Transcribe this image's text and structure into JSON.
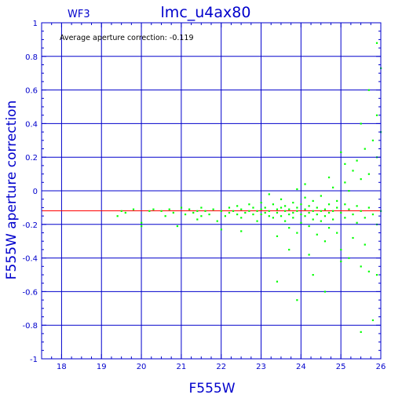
{
  "chart_data": {
    "type": "scatter",
    "title": "lmc_u4ax80",
    "subtitle": "WF3",
    "annotation": "Average aperture correction:  -0.119",
    "xlabel": "F555W",
    "ylabel": "F555W aperture correction",
    "xlim": [
      17.5,
      26
    ],
    "ylim": [
      -1,
      1
    ],
    "x_ticks": [
      "18",
      "19",
      "20",
      "21",
      "22",
      "23",
      "24",
      "25",
      "26"
    ],
    "y_ticks": [
      "1",
      "0.8",
      "0.6",
      "0.4",
      "0.2",
      "0",
      "-0.2",
      "-0.4",
      "-0.6",
      "-0.8",
      "-1"
    ],
    "grid": true,
    "reference_line": {
      "y": -0.119,
      "color": "#ff0000"
    },
    "colors": {
      "axis": "#0000cc",
      "grid": "#0000cc",
      "points": "#00ff00",
      "text": "#0000cc",
      "annotation": "#000000"
    },
    "series": [
      {
        "points": [
          [
            19.4,
            -0.15
          ],
          [
            19.5,
            -0.12
          ],
          [
            19.6,
            -0.13
          ],
          [
            19.8,
            -0.11
          ],
          [
            20.0,
            -0.19
          ],
          [
            20.0,
            -0.21
          ],
          [
            20.2,
            -0.12
          ],
          [
            20.3,
            -0.11
          ],
          [
            20.5,
            -0.12
          ],
          [
            20.7,
            -0.11
          ],
          [
            20.8,
            -0.13
          ],
          [
            20.9,
            -0.21
          ],
          [
            21.0,
            -0.1
          ],
          [
            21.1,
            -0.14
          ],
          [
            21.2,
            -0.11
          ],
          [
            21.3,
            -0.13
          ],
          [
            21.4,
            -0.12
          ],
          [
            21.5,
            -0.15
          ],
          [
            21.5,
            -0.1
          ],
          [
            21.6,
            -0.12
          ],
          [
            21.7,
            -0.14
          ],
          [
            21.8,
            -0.11
          ],
          [
            21.9,
            -0.18
          ],
          [
            22.0,
            -0.12
          ],
          [
            22.1,
            -0.15
          ],
          [
            22.2,
            -0.1
          ],
          [
            22.2,
            -0.13
          ],
          [
            22.3,
            -0.12
          ],
          [
            22.4,
            -0.14
          ],
          [
            22.4,
            -0.09
          ],
          [
            22.5,
            -0.11
          ],
          [
            22.5,
            -0.16
          ],
          [
            22.6,
            -0.13
          ],
          [
            22.7,
            -0.12
          ],
          [
            22.7,
            -0.08
          ],
          [
            22.8,
            -0.14
          ],
          [
            22.8,
            -0.1
          ],
          [
            22.9,
            -0.12
          ],
          [
            22.9,
            -0.18
          ],
          [
            23.0,
            -0.11
          ],
          [
            23.0,
            -0.14
          ],
          [
            23.0,
            -0.07
          ],
          [
            23.1,
            -0.13
          ],
          [
            23.1,
            -0.1
          ],
          [
            23.2,
            -0.15
          ],
          [
            23.2,
            -0.12
          ],
          [
            23.3,
            -0.08
          ],
          [
            23.3,
            -0.16
          ],
          [
            23.4,
            -0.11
          ],
          [
            23.4,
            -0.13
          ],
          [
            23.4,
            -0.27
          ],
          [
            23.5,
            -0.1
          ],
          [
            23.5,
            -0.15
          ],
          [
            23.5,
            -0.05
          ],
          [
            23.6,
            -0.12
          ],
          [
            23.6,
            -0.18
          ],
          [
            23.6,
            -0.09
          ],
          [
            23.7,
            -0.14
          ],
          [
            23.7,
            -0.11
          ],
          [
            23.7,
            -0.22
          ],
          [
            23.8,
            -0.13
          ],
          [
            23.8,
            -0.07
          ],
          [
            23.8,
            -0.16
          ],
          [
            23.9,
            -0.12
          ],
          [
            23.9,
            -0.1
          ],
          [
            23.9,
            -0.25
          ],
          [
            24.0,
            -0.14
          ],
          [
            24.0,
            -0.08
          ],
          [
            24.0,
            -0.19
          ],
          [
            24.1,
            -0.11
          ],
          [
            24.1,
            -0.15
          ],
          [
            24.1,
            -0.04
          ],
          [
            24.2,
            -0.13
          ],
          [
            24.2,
            -0.21
          ],
          [
            24.2,
            -0.09
          ],
          [
            24.3,
            -0.12
          ],
          [
            24.3,
            -0.17
          ],
          [
            24.3,
            -0.06
          ],
          [
            24.4,
            -0.14
          ],
          [
            24.4,
            -0.1
          ],
          [
            24.4,
            -0.26
          ],
          [
            24.5,
            -0.12
          ],
          [
            24.5,
            -0.03
          ],
          [
            24.5,
            -0.18
          ],
          [
            24.6,
            -0.11
          ],
          [
            24.6,
            -0.15
          ],
          [
            24.6,
            -0.3
          ],
          [
            24.7,
            -0.08
          ],
          [
            24.7,
            -0.13
          ],
          [
            24.7,
            -0.22
          ],
          [
            24.8,
            -0.12
          ],
          [
            24.8,
            0.02
          ],
          [
            24.8,
            -0.17
          ],
          [
            24.9,
            -0.1
          ],
          [
            24.9,
            -0.25
          ],
          [
            24.9,
            -0.06
          ],
          [
            25.0,
            -0.13
          ],
          [
            25.0,
            0.23
          ],
          [
            25.0,
            -0.35
          ],
          [
            25.1,
            -0.08
          ],
          [
            25.1,
            -0.16
          ],
          [
            25.1,
            0.05
          ],
          [
            25.2,
            -0.11
          ],
          [
            25.2,
            -0.4
          ],
          [
            25.2,
            0.0
          ],
          [
            25.3,
            -0.14
          ],
          [
            25.3,
            0.12
          ],
          [
            25.3,
            -0.28
          ],
          [
            25.4,
            -0.09
          ],
          [
            25.4,
            -0.19
          ],
          [
            25.4,
            0.18
          ],
          [
            25.5,
            -0.12
          ],
          [
            25.5,
            -0.45
          ],
          [
            25.5,
            0.07
          ],
          [
            25.6,
            -0.16
          ],
          [
            25.6,
            0.25
          ],
          [
            25.6,
            -0.32
          ],
          [
            25.7,
            -0.1
          ],
          [
            25.7,
            0.1
          ],
          [
            25.7,
            -0.48
          ],
          [
            25.8,
            -0.14
          ],
          [
            25.8,
            0.3
          ],
          [
            25.8,
            -0.77
          ],
          [
            25.9,
            0.88
          ],
          [
            25.9,
            0.45
          ],
          [
            25.9,
            -0.2
          ],
          [
            26.0,
            0.73
          ],
          [
            26.0,
            0.35
          ],
          [
            26.0,
            -0.12
          ],
          [
            25.5,
            -0.84
          ],
          [
            24.6,
            -0.6
          ],
          [
            23.9,
            -0.65
          ],
          [
            23.4,
            -0.54
          ],
          [
            24.3,
            -0.5
          ],
          [
            25.9,
            -0.5
          ],
          [
            25.0,
            -0.42
          ],
          [
            24.2,
            -0.38
          ],
          [
            23.7,
            -0.35
          ],
          [
            22.5,
            -0.24
          ],
          [
            22.0,
            -0.23
          ],
          [
            21.4,
            -0.17
          ],
          [
            20.6,
            -0.15
          ],
          [
            23.2,
            -0.02
          ],
          [
            23.9,
            0.01
          ],
          [
            24.1,
            0.04
          ],
          [
            24.7,
            0.08
          ],
          [
            25.1,
            0.16
          ],
          [
            25.5,
            0.4
          ],
          [
            25.7,
            0.6
          ],
          [
            25.9,
            0.2
          ]
        ]
      }
    ]
  }
}
